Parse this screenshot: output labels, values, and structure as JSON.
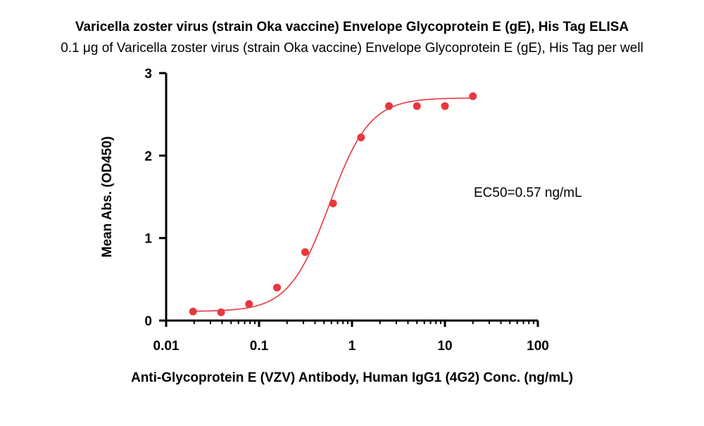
{
  "chart_data": {
    "type": "scatter",
    "title": "Varicella zoster virus (strain Oka vaccine) Envelope Glycoprotein E (gE), His Tag ELISA",
    "subtitle": "0.1 μg of Varicella zoster virus (strain Oka vaccine) Envelope Glycoprotein E (gE), His Tag per well",
    "xlabel": "Anti-Glycoprotein E (VZV) Antibody, Human IgG1 (4G2) Conc. (ng/mL)",
    "ylabel": "Mean Abs. (OD450)",
    "xscale": "log",
    "xlim": [
      0.01,
      100
    ],
    "ylim": [
      0,
      3
    ],
    "xticks": [
      0.01,
      0.1,
      1,
      10,
      100
    ],
    "xtick_labels": [
      "0.01",
      "0.1",
      "1",
      "10",
      "100"
    ],
    "yticks": [
      0,
      1,
      2,
      3
    ],
    "ytick_labels": [
      "0",
      "1",
      "2",
      "3"
    ],
    "series": [
      {
        "name": "Mean Abs.",
        "color": "#e8373e",
        "x": [
          0.0195,
          0.039,
          0.078,
          0.156,
          0.3125,
          0.625,
          1.25,
          2.5,
          5,
          10,
          20
        ],
        "y": [
          0.11,
          0.1,
          0.2,
          0.4,
          0.83,
          1.42,
          2.22,
          2.6,
          2.6,
          2.6,
          2.72
        ]
      }
    ],
    "fit": {
      "model": "4PL",
      "bottom": 0.11,
      "top": 2.7,
      "ec50": 0.57,
      "hill": 2.0,
      "color": "#e8373e"
    },
    "annotation": "EC50=0.57 ng/mL",
    "grid": false
  }
}
